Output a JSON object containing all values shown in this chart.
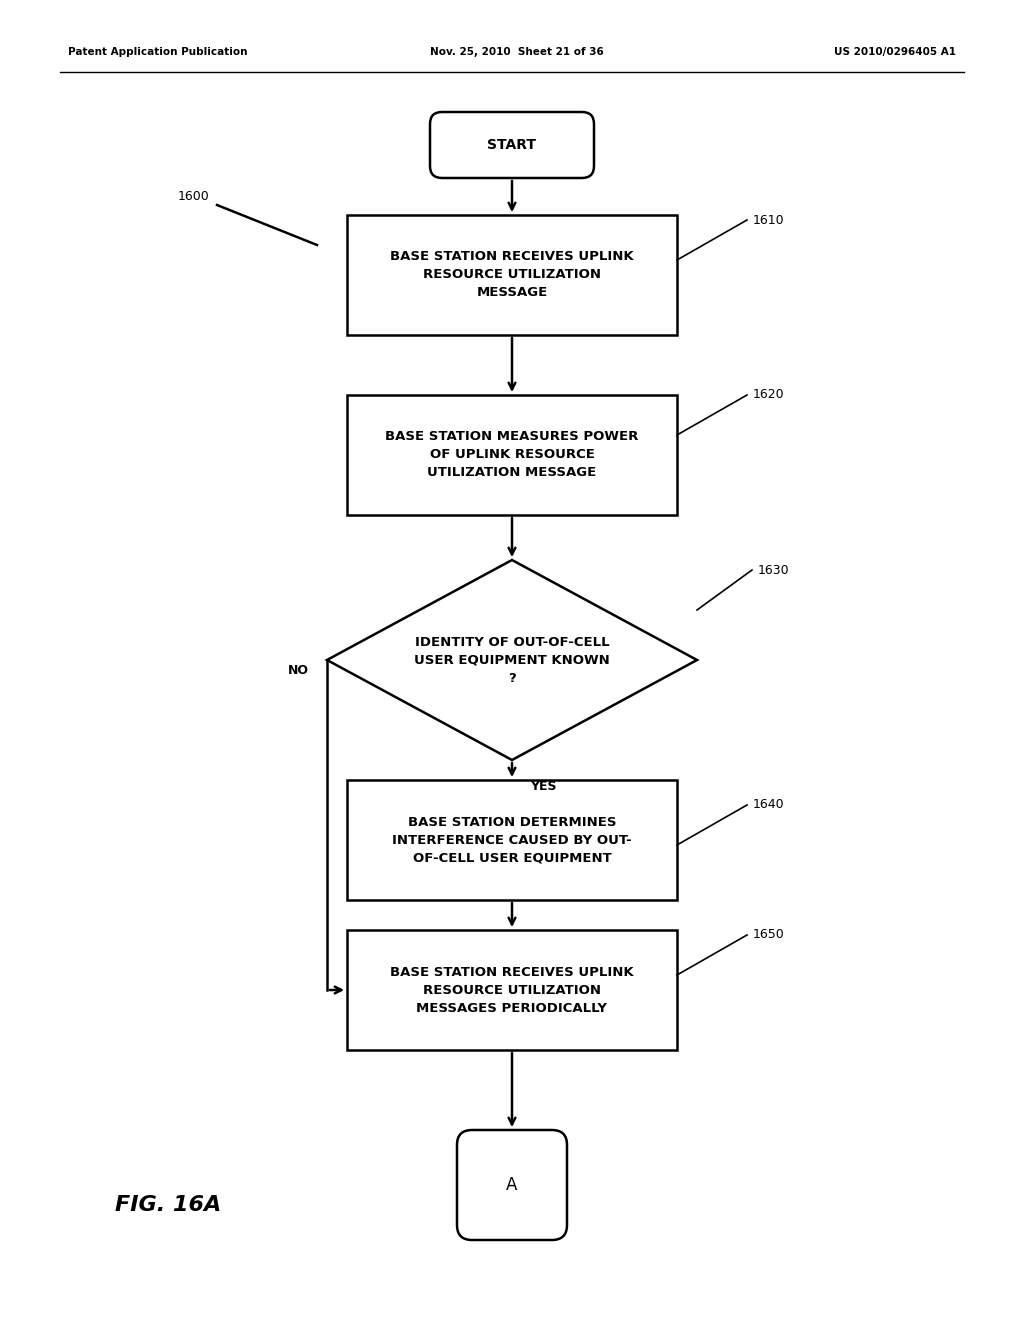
{
  "bg_color": "#ffffff",
  "header_left": "Patent Application Publication",
  "header_mid": "Nov. 25, 2010  Sheet 21 of 36",
  "header_right": "US 2010/0296405 A1",
  "figure_label": "FIG. 16A",
  "start_label": "START",
  "end_label": "A",
  "label_1600": "1600",
  "box1610_label": "BASE STATION RECEIVES UPLINK\nRESOURCE UTILIZATION\nMESSAGE",
  "box1610_tag": "1610",
  "box1620_label": "BASE STATION MEASURES POWER\nOF UPLINK RESOURCE\nUTILIZATION MESSAGE",
  "box1620_tag": "1620",
  "box1640_label": "BASE STATION DETERMINES\nINTERFERENCE CAUSED BY OUT-\nOF-CELL USER EQUIPMENT",
  "box1640_tag": "1640",
  "box1650_label": "BASE STATION RECEIVES UPLINK\nRESOURCE UTILIZATION\nMESSAGES PERIODICALLY",
  "box1650_tag": "1650",
  "diamond_label": "IDENTITY OF OUT-OF-CELL\nUSER EQUIPMENT KNOWN\n?",
  "diamond_tag": "1630",
  "yes_label": "YES",
  "no_label": "NO",
  "line_color": "#000000",
  "text_color": "#000000"
}
